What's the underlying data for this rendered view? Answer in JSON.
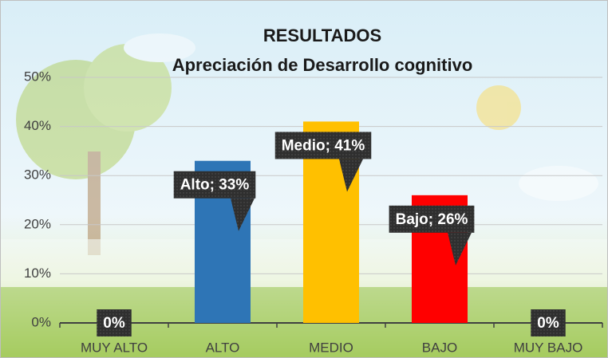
{
  "chart_data": {
    "type": "bar",
    "title": "RESULTADOS",
    "subtitle": "Apreciación  de Desarrollo cognitivo",
    "categories": [
      "MUY ALTO",
      "ALTO",
      "MEDIO",
      "BAJO",
      "MUY BAJO"
    ],
    "values": [
      0,
      33,
      41,
      26,
      0
    ],
    "value_labels": [
      "0%",
      "Alto; 33%",
      "Medio; 41%",
      "Bajo; 26%",
      "0%"
    ],
    "colors": [
      "#2e75b6",
      "#2e75b6",
      "#ffc000",
      "#ff0000",
      "#2e75b6"
    ],
    "ylim": [
      0,
      50
    ],
    "yticks": [
      {
        "value": 0,
        "label": "0%"
      },
      {
        "value": 10,
        "label": "10%"
      },
      {
        "value": 20,
        "label": "20%"
      },
      {
        "value": 30,
        "label": "30%"
      },
      {
        "value": 40,
        "label": "40%"
      },
      {
        "value": 50,
        "label": "50%"
      }
    ],
    "grid": true
  }
}
